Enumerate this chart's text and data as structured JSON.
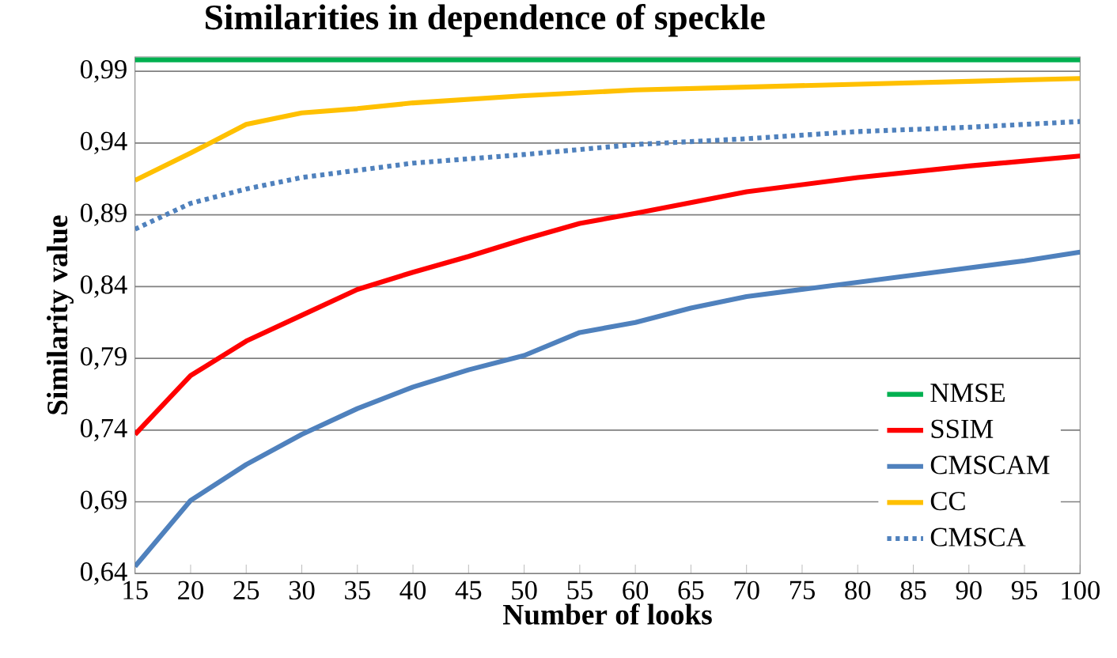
{
  "chart_data": {
    "type": "line",
    "title": "Similarities in dependence of speckle",
    "xlabel": "Number of looks",
    "ylabel": "Similarity value",
    "xlim": [
      15,
      100
    ],
    "ylim": [
      0.64,
      1.0
    ],
    "xticks": [
      15,
      20,
      25,
      30,
      35,
      40,
      45,
      50,
      55,
      60,
      65,
      70,
      75,
      80,
      85,
      90,
      95,
      100
    ],
    "yticks": [
      {
        "value": 0.64,
        "label": "0,64"
      },
      {
        "value": 0.69,
        "label": "0,69"
      },
      {
        "value": 0.74,
        "label": "0,74"
      },
      {
        "value": 0.79,
        "label": "0,79"
      },
      {
        "value": 0.84,
        "label": "0,84"
      },
      {
        "value": 0.89,
        "label": "0,89"
      },
      {
        "value": 0.94,
        "label": "0,94"
      },
      {
        "value": 0.99,
        "label": "0,99"
      }
    ],
    "grid": "y",
    "legend": "bottom right",
    "series": [
      {
        "name": "NMSE",
        "color": "#00b050",
        "x": [
          15,
          100
        ],
        "values": [
          0.998,
          0.998
        ]
      },
      {
        "name": "SSIM",
        "color": "#ff0000",
        "x": [
          15,
          20,
          25,
          30,
          35,
          40,
          45,
          50,
          55,
          60,
          70,
          80,
          90,
          100
        ],
        "values": [
          0.737,
          0.778,
          0.802,
          0.82,
          0.838,
          0.85,
          0.861,
          0.873,
          0.884,
          0.891,
          0.906,
          0.916,
          0.924,
          0.931
        ]
      },
      {
        "name": "CMSCAM",
        "color": "#4f81bd",
        "x": [
          15,
          20,
          25,
          30,
          35,
          40,
          45,
          50,
          55,
          60,
          65,
          70,
          75,
          80,
          85,
          90,
          95,
          100
        ],
        "values": [
          0.645,
          0.691,
          0.716,
          0.737,
          0.755,
          0.77,
          0.782,
          0.792,
          0.808,
          0.815,
          0.825,
          0.833,
          0.838,
          0.843,
          0.848,
          0.853,
          0.858,
          0.864
        ]
      },
      {
        "name": "CC",
        "color": "#ffc000",
        "x": [
          15,
          20,
          25,
          30,
          35,
          40,
          50,
          60,
          70,
          80,
          90,
          100
        ],
        "values": [
          0.914,
          0.933,
          0.953,
          0.961,
          0.964,
          0.968,
          0.973,
          0.977,
          0.979,
          0.981,
          0.983,
          0.985
        ]
      },
      {
        "name": "CMSCA",
        "color": "#4f81bd",
        "line_style": "dotted",
        "x": [
          15,
          20,
          25,
          30,
          40,
          50,
          60,
          70,
          80,
          90,
          100
        ],
        "values": [
          0.88,
          0.898,
          0.908,
          0.916,
          0.926,
          0.932,
          0.939,
          0.943,
          0.948,
          0.951,
          0.955
        ]
      }
    ]
  }
}
